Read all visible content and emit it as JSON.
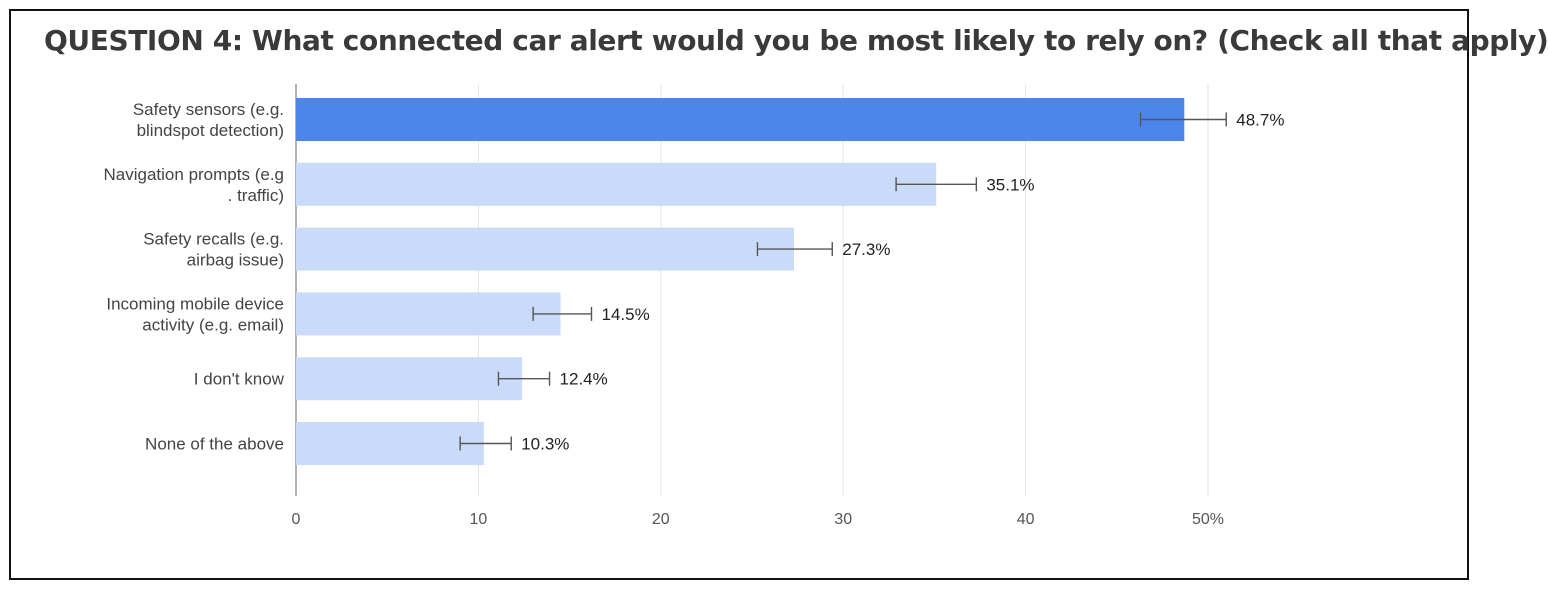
{
  "chart_data": {
    "type": "bar",
    "orientation": "horizontal",
    "title": "QUESTION 4: What connected car alert would you be most likely to rely on? (Check all that apply)",
    "categories": [
      [
        "Safety sensors (e.g.",
        "blindspot detection)"
      ],
      [
        "Navigation prompts (e.g",
        ". traffic)"
      ],
      [
        "Safety recalls (e.g.",
        "airbag issue)"
      ],
      [
        "Incoming mobile device",
        "activity (e.g. email)"
      ],
      [
        "I don't know"
      ],
      [
        "None of the above"
      ]
    ],
    "values": [
      48.7,
      35.1,
      27.3,
      14.5,
      12.4,
      10.3
    ],
    "data_labels": [
      "48.7%",
      "35.1%",
      "27.3%",
      "14.5%",
      "12.4%",
      "10.3%"
    ],
    "error_bars": [
      [
        46.3,
        51.0
      ],
      [
        32.9,
        37.3
      ],
      [
        25.3,
        29.4
      ],
      [
        13.0,
        16.2
      ],
      [
        11.1,
        13.9
      ],
      [
        9.0,
        11.8
      ]
    ],
    "xlim": [
      0,
      50
    ],
    "x_ticks": [
      0,
      10,
      20,
      30,
      40,
      50
    ],
    "x_tick_labels": [
      "0",
      "10",
      "20",
      "30",
      "40",
      "50%"
    ],
    "grid": true,
    "colors": {
      "highlight": "#4d86ea",
      "bar": "#c9dbf8",
      "error_bar": "#555555",
      "grid": "#e3e3e3",
      "axis": "#999999"
    },
    "highlight_index": 0
  }
}
